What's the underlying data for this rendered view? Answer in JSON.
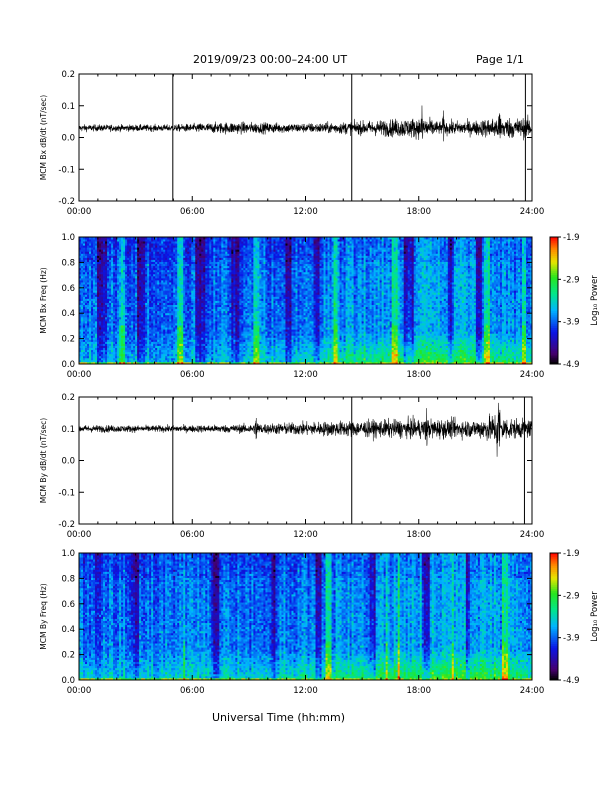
{
  "header": {
    "title": "2019/09/23  00:00–24:00 UT",
    "page": "Page 1/1"
  },
  "footer": {
    "xlabel": "Universal Time (hh:mm)"
  },
  "chart_data": [
    {
      "type": "line",
      "id": "bx-ts",
      "ylabel": "MCM Bx dB/dt (nT/sec)",
      "xlim": [
        0,
        24
      ],
      "ylim": [
        -0.2,
        0.2
      ],
      "xticks": [
        "00:00",
        "06:00",
        "12:00",
        "18:00",
        "24:00"
      ],
      "yticks": [
        "-0.2",
        "-0.1",
        "0.0",
        "0.1",
        "0.2"
      ],
      "baseline": 0.03,
      "noise_profile": [
        [
          0,
          0.01
        ],
        [
          5,
          0.01
        ],
        [
          8,
          0.018
        ],
        [
          12,
          0.014
        ],
        [
          15,
          0.02
        ],
        [
          17.5,
          0.03
        ],
        [
          18.5,
          0.03
        ],
        [
          19,
          0.02
        ],
        [
          21,
          0.022
        ],
        [
          22,
          0.032
        ],
        [
          24,
          0.03
        ]
      ],
      "spikes": [
        [
          4.97,
          0.2,
          -0.2
        ],
        [
          14.45,
          0.2,
          -0.2
        ],
        [
          23.65,
          0.2,
          -0.2
        ]
      ],
      "bursts": [
        [
          18.2,
          0.06,
          0.05
        ],
        [
          19.3,
          0.03,
          0.04
        ],
        [
          22.3,
          0.04,
          0.05
        ]
      ]
    },
    {
      "type": "heatmap",
      "id": "bx-spec",
      "ylabel": "MCM Bx Freq (Hz)",
      "xlim": [
        0,
        24
      ],
      "ylim": [
        0,
        1.0
      ],
      "xticks": [
        "00:00",
        "06:00",
        "12:00",
        "18:00",
        "24:00"
      ],
      "yticks": [
        "0.0",
        "0.2",
        "0.4",
        "0.6",
        "0.8",
        "1.0"
      ],
      "colorbar": {
        "label": "Log₁₀ Power",
        "range": [
          -4.9,
          -1.9
        ],
        "ticks": [
          "-1.9",
          "-2.9",
          "-3.9",
          "-4.9"
        ]
      },
      "dark_bands": [
        [
          1.2,
          0.5
        ],
        [
          3.3,
          0.4
        ],
        [
          6.4,
          0.5
        ],
        [
          8.3,
          0.4
        ],
        [
          11.1,
          0.3
        ],
        [
          12.6,
          0.3
        ],
        [
          17.5,
          0.5
        ],
        [
          19.7,
          0.4
        ],
        [
          21.2,
          0.3
        ]
      ],
      "bright_streaks": [
        [
          2.3,
          0.3
        ],
        [
          5.4,
          0.3
        ],
        [
          9.4,
          0.4
        ],
        [
          13.6,
          0.3
        ],
        [
          16.7,
          0.3
        ],
        [
          21.6,
          0.3
        ],
        [
          23.6,
          0.2
        ]
      ],
      "activity": [
        [
          0,
          0.3
        ],
        [
          8,
          0.35
        ],
        [
          13,
          0.55
        ],
        [
          16,
          0.75
        ],
        [
          18,
          0.85
        ],
        [
          20,
          0.9
        ],
        [
          22,
          0.75
        ],
        [
          24,
          0.6
        ]
      ]
    },
    {
      "type": "line",
      "id": "by-ts",
      "ylabel": "MCM By dB/dt (nT/sec)",
      "xlim": [
        0,
        24
      ],
      "ylim": [
        -0.2,
        0.2
      ],
      "xticks": [
        "00:00",
        "06:00",
        "12:00",
        "18:00",
        "24:00"
      ],
      "yticks": [
        "-0.2",
        "-0.1",
        "0.0",
        "0.1",
        "0.2"
      ],
      "baseline": 0.1,
      "noise_profile": [
        [
          0,
          0.011
        ],
        [
          5,
          0.01
        ],
        [
          8,
          0.012
        ],
        [
          12,
          0.02
        ],
        [
          14.5,
          0.024
        ],
        [
          17,
          0.028
        ],
        [
          19,
          0.03
        ],
        [
          21,
          0.026
        ],
        [
          22,
          0.045
        ],
        [
          23,
          0.03
        ],
        [
          24,
          0.026
        ]
      ],
      "spikes": [
        [
          4.97,
          0.2,
          -0.2
        ],
        [
          14.45,
          0.2,
          -0.2
        ],
        [
          23.6,
          0.2,
          -0.2
        ]
      ],
      "bursts": [
        [
          9.4,
          0.05,
          0.05
        ],
        [
          18.4,
          0.05,
          0.04
        ],
        [
          22.2,
          0.09,
          0.09
        ]
      ]
    },
    {
      "type": "heatmap",
      "id": "by-spec",
      "ylabel": "MCM By Freq (Hz)",
      "xlim": [
        0,
        24
      ],
      "ylim": [
        0,
        1.0
      ],
      "xticks": [
        "00:00",
        "06:00",
        "12:00",
        "18:00",
        "24:00"
      ],
      "yticks": [
        "0.0",
        "0.2",
        "0.4",
        "0.6",
        "0.8",
        "1.0"
      ],
      "colorbar": {
        "label": "Log₁₀ Power",
        "range": [
          -4.9,
          -1.9
        ],
        "ticks": [
          "-1.9",
          "-2.9",
          "-3.9",
          "-4.9"
        ]
      },
      "dark_bands": [
        [
          1.0,
          0.4
        ],
        [
          3.0,
          0.4
        ],
        [
          7.2,
          0.4
        ],
        [
          10.3,
          0.3
        ],
        [
          12.7,
          0.3
        ],
        [
          15.6,
          0.3
        ],
        [
          18.4,
          0.4
        ],
        [
          20.6,
          0.3
        ]
      ],
      "bright_streaks": [
        [
          5.55,
          0.15
        ],
        [
          16.3,
          0.12
        ],
        [
          16.95,
          0.12
        ],
        [
          19.85,
          0.12
        ],
        [
          13.2,
          0.3
        ],
        [
          22.6,
          0.3
        ]
      ],
      "activity": [
        [
          0,
          0.4
        ],
        [
          8,
          0.45
        ],
        [
          12,
          0.55
        ],
        [
          15,
          0.75
        ],
        [
          18,
          0.85
        ],
        [
          21,
          0.95
        ],
        [
          24,
          0.65
        ]
      ]
    }
  ]
}
